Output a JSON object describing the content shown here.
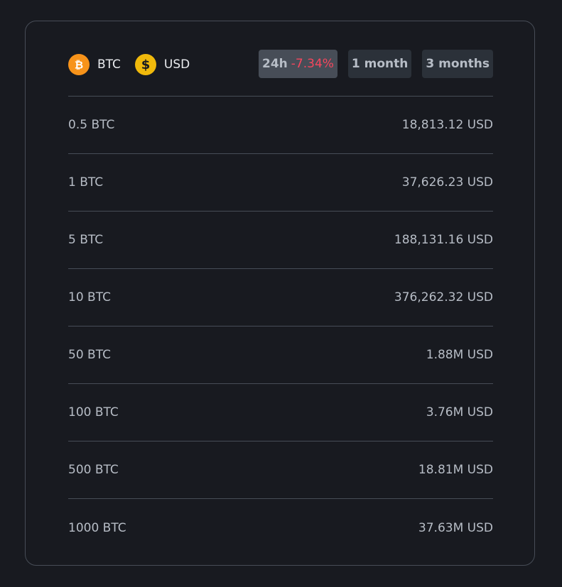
{
  "pair": {
    "base": {
      "symbol": "BTC",
      "icon": "bitcoin-icon",
      "color": "#f7931a"
    },
    "quote": {
      "symbol": "USD",
      "icon": "dollar-icon",
      "color": "#f0b90b"
    }
  },
  "tabs": [
    {
      "label": "24h",
      "change": "-7.34%",
      "active": true
    },
    {
      "label": "1 month",
      "active": false
    },
    {
      "label": "3 months",
      "active": false
    }
  ],
  "rows": [
    {
      "amount": "0.5 BTC",
      "value": "18,813.12 USD"
    },
    {
      "amount": "1 BTC",
      "value": "37,626.23 USD"
    },
    {
      "amount": "5 BTC",
      "value": "188,131.16 USD"
    },
    {
      "amount": "10 BTC",
      "value": "376,262.32 USD"
    },
    {
      "amount": "50 BTC",
      "value": "1.88M USD"
    },
    {
      "amount": "100 BTC",
      "value": "3.76M USD"
    },
    {
      "amount": "500 BTC",
      "value": "18.81M USD"
    },
    {
      "amount": "1000 BTC",
      "value": "37.63M USD"
    }
  ],
  "colors": {
    "background": "#181a20",
    "negative": "#f6465d",
    "text": "#b7bdc6",
    "divider": "#474d57"
  }
}
